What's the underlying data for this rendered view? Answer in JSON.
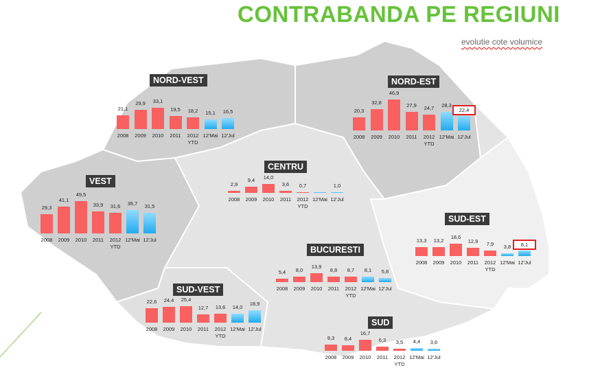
{
  "title": "CONTRABANDA PE REGIUNI",
  "subtitle": "evolutie cote volumice",
  "colors": {
    "historic": "#f96060",
    "current": "#22aaee",
    "title": "#66c23a",
    "highlight": "#e02020"
  },
  "chart_data": {
    "type": "bar",
    "categories": [
      "2008",
      "2009",
      "2010",
      "2011",
      "2012 YTD",
      "12'Mai",
      "12'Jul"
    ],
    "category_labels": [
      [
        "2008"
      ],
      [
        "2009"
      ],
      [
        "2010"
      ],
      [
        "2011"
      ],
      [
        "2012",
        "YTD"
      ],
      [
        "12'Mai"
      ],
      [
        "12'Jul"
      ]
    ],
    "regions": [
      {
        "id": "nv",
        "name": "NORD-VEST",
        "values": [
          21.1,
          29.9,
          33.1,
          19.5,
          18.2,
          15.1,
          16.5
        ],
        "labels": [
          "21,1",
          "29,9",
          "33,1",
          "19,5",
          "18,2",
          "15,1",
          "16,5"
        ],
        "highlight_index": -1
      },
      {
        "id": "ne",
        "name": "NORD-EST",
        "values": [
          20.3,
          32.8,
          46.9,
          27.9,
          24.7,
          28.3,
          22.4
        ],
        "labels": [
          "20,3",
          "32,8",
          "46,9",
          "27,9",
          "24,7",
          "28,3",
          "22,4"
        ],
        "highlight_index": 6
      },
      {
        "id": "v",
        "name": "VEST",
        "values": [
          29.3,
          41.1,
          49.5,
          33.9,
          31.6,
          35.7,
          31.5
        ],
        "labels": [
          "29,3",
          "41,1",
          "49,5",
          "33,9",
          "31,6",
          "35,7",
          "31,5"
        ],
        "highlight_index": -1
      },
      {
        "id": "c",
        "name": "CENTRU",
        "values": [
          2.9,
          9.4,
          14.0,
          3.6,
          0.7,
          0,
          1.0
        ],
        "labels": [
          "2,9",
          "9,4",
          "14,0",
          "3,6",
          "0,7",
          "",
          "1,0"
        ],
        "highlight_index": -1
      },
      {
        "id": "se",
        "name": "SUD-EST",
        "values": [
          13.3,
          13.2,
          18.6,
          12.9,
          7.9,
          3.8,
          8.1
        ],
        "labels": [
          "13,3",
          "13,2",
          "18,6",
          "12,9",
          "7,9",
          "3,8",
          "8,1"
        ],
        "highlight_index": 6
      },
      {
        "id": "b",
        "name": "BUCURESTI",
        "values": [
          5.4,
          8.0,
          13.9,
          8.8,
          8.7,
          8.1,
          5.8
        ],
        "labels": [
          "5,4",
          "8,0",
          "13,9",
          "8,8",
          "8,7",
          "8,1",
          "5,8"
        ],
        "highlight_index": -1
      },
      {
        "id": "sv",
        "name": "SUD-VEST",
        "values": [
          22.6,
          24.4,
          25.4,
          12.7,
          13.6,
          14.0,
          18.9
        ],
        "labels": [
          "22,6",
          "24,4",
          "25,4",
          "12,7",
          "13,6",
          "14,0",
          "18,9"
        ],
        "highlight_index": -1
      },
      {
        "id": "s",
        "name": "SUD",
        "values": [
          9.3,
          8.4,
          16.7,
          6.3,
          3.5,
          4.4,
          3.6
        ],
        "labels": [
          "9,3",
          "8,4",
          "16,7",
          "6,3",
          "3,5",
          "4,4",
          "3,6"
        ],
        "highlight_index": -1
      }
    ],
    "legend": "none"
  }
}
